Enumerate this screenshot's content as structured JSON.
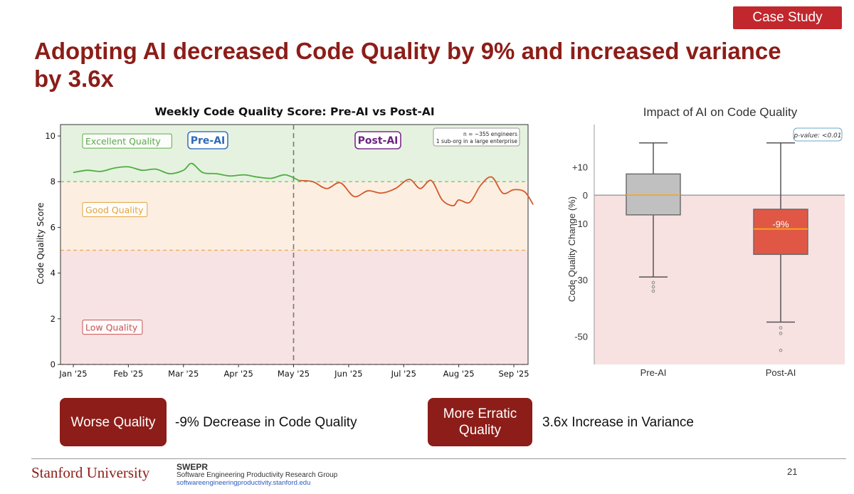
{
  "badge": "Case Study",
  "title": "Adopting AI decreased Code Quality by 9% and increased variance by 3.6x",
  "chart_data": [
    {
      "type": "line",
      "title": "Weekly Code Quality Score: Pre-AI vs Post-AI",
      "ylabel": "Code Quality Score",
      "xlabel": "",
      "ylim": [
        0,
        10.5
      ],
      "yticks": [
        0,
        2,
        4,
        6,
        8,
        10
      ],
      "x_tick_labels": [
        "Jan '25",
        "Feb '25",
        "Mar '25",
        "Apr '25",
        "May '25",
        "Jun '25",
        "Jul '25",
        "Aug '25",
        "Sep '25"
      ],
      "zones": [
        {
          "label": "Excellent Quality",
          "from": 8,
          "to": 10.5,
          "color": "#e6f2e0"
        },
        {
          "label": "Good Quality",
          "from": 5,
          "to": 8,
          "color": "#fcefe2"
        },
        {
          "label": "Low Quality",
          "from": 0,
          "to": 5,
          "color": "#f7e3e3"
        }
      ],
      "divider_x": 4,
      "annotations": {
        "pre": "Pre-AI",
        "post": "Post-AI",
        "note_line1": "n = ~355 engineers",
        "note_line2": "1 sub-org in a large enterprise"
      },
      "series": [
        {
          "name": "Pre-AI",
          "color": "#4caf3f",
          "x": [
            0,
            0.25,
            0.5,
            0.75,
            1.0,
            1.25,
            1.5,
            1.75,
            2.0,
            2.15,
            2.35,
            2.6,
            2.85,
            3.1,
            3.35,
            3.6,
            3.85,
            4.1
          ],
          "y": [
            8.4,
            8.5,
            8.45,
            8.6,
            8.65,
            8.5,
            8.55,
            8.35,
            8.5,
            8.8,
            8.4,
            8.35,
            8.25,
            8.3,
            8.2,
            8.15,
            8.3,
            8.05
          ]
        },
        {
          "name": "Post-AI",
          "color": "#d2592b",
          "x": [
            4.1,
            4.35,
            4.6,
            4.85,
            5.1,
            5.35,
            5.6,
            5.85,
            6.1,
            6.3,
            6.5,
            6.7,
            6.9,
            7.0,
            7.2,
            7.4,
            7.6,
            7.8,
            8.0,
            8.2,
            8.35
          ],
          "y": [
            8.05,
            8.0,
            7.7,
            7.95,
            7.35,
            7.6,
            7.5,
            7.7,
            8.1,
            7.7,
            8.05,
            7.2,
            6.95,
            7.2,
            7.1,
            7.85,
            8.2,
            7.5,
            7.65,
            7.55,
            7.0
          ]
        }
      ]
    },
    {
      "type": "box",
      "title": "Impact of AI on Code Quality",
      "ylabel": "Code Quality Change (%)",
      "ylim": [
        -60,
        25
      ],
      "yticks": [
        10,
        0,
        -10,
        -30,
        -50
      ],
      "ytick_labels": [
        "+10",
        "0",
        "-10",
        "-30",
        "-50"
      ],
      "annotation": "p-value: <0.01",
      "boxes": [
        {
          "category": "Pre-AI",
          "whisker_low": -29,
          "q1": -7,
          "median": 0,
          "q3": 7.5,
          "whisker_high": 18.5,
          "outliers": [
            -31,
            -32.5,
            -34
          ],
          "color": "#c0c0c0"
        },
        {
          "category": "Post-AI",
          "whisker_low": -45,
          "q1": -21,
          "median": -12,
          "q3": -5,
          "whisker_high": 18.5,
          "outliers": [
            -47,
            -49,
            -55
          ],
          "color": "#e05845",
          "label": "-9%"
        }
      ]
    }
  ],
  "callouts": [
    {
      "tag": "Worse Quality",
      "text": "-9% Decrease in Code Quality"
    },
    {
      "tag": "More Erratic Quality",
      "text": "3.6x Increase in Variance"
    }
  ],
  "footer": {
    "university": "Stanford University",
    "group_abbr": "SWEPR",
    "group_name": "Software Engineering Productivity Research Group",
    "url": "softwareengineeringproductivity.stanford.edu",
    "page": "21"
  }
}
